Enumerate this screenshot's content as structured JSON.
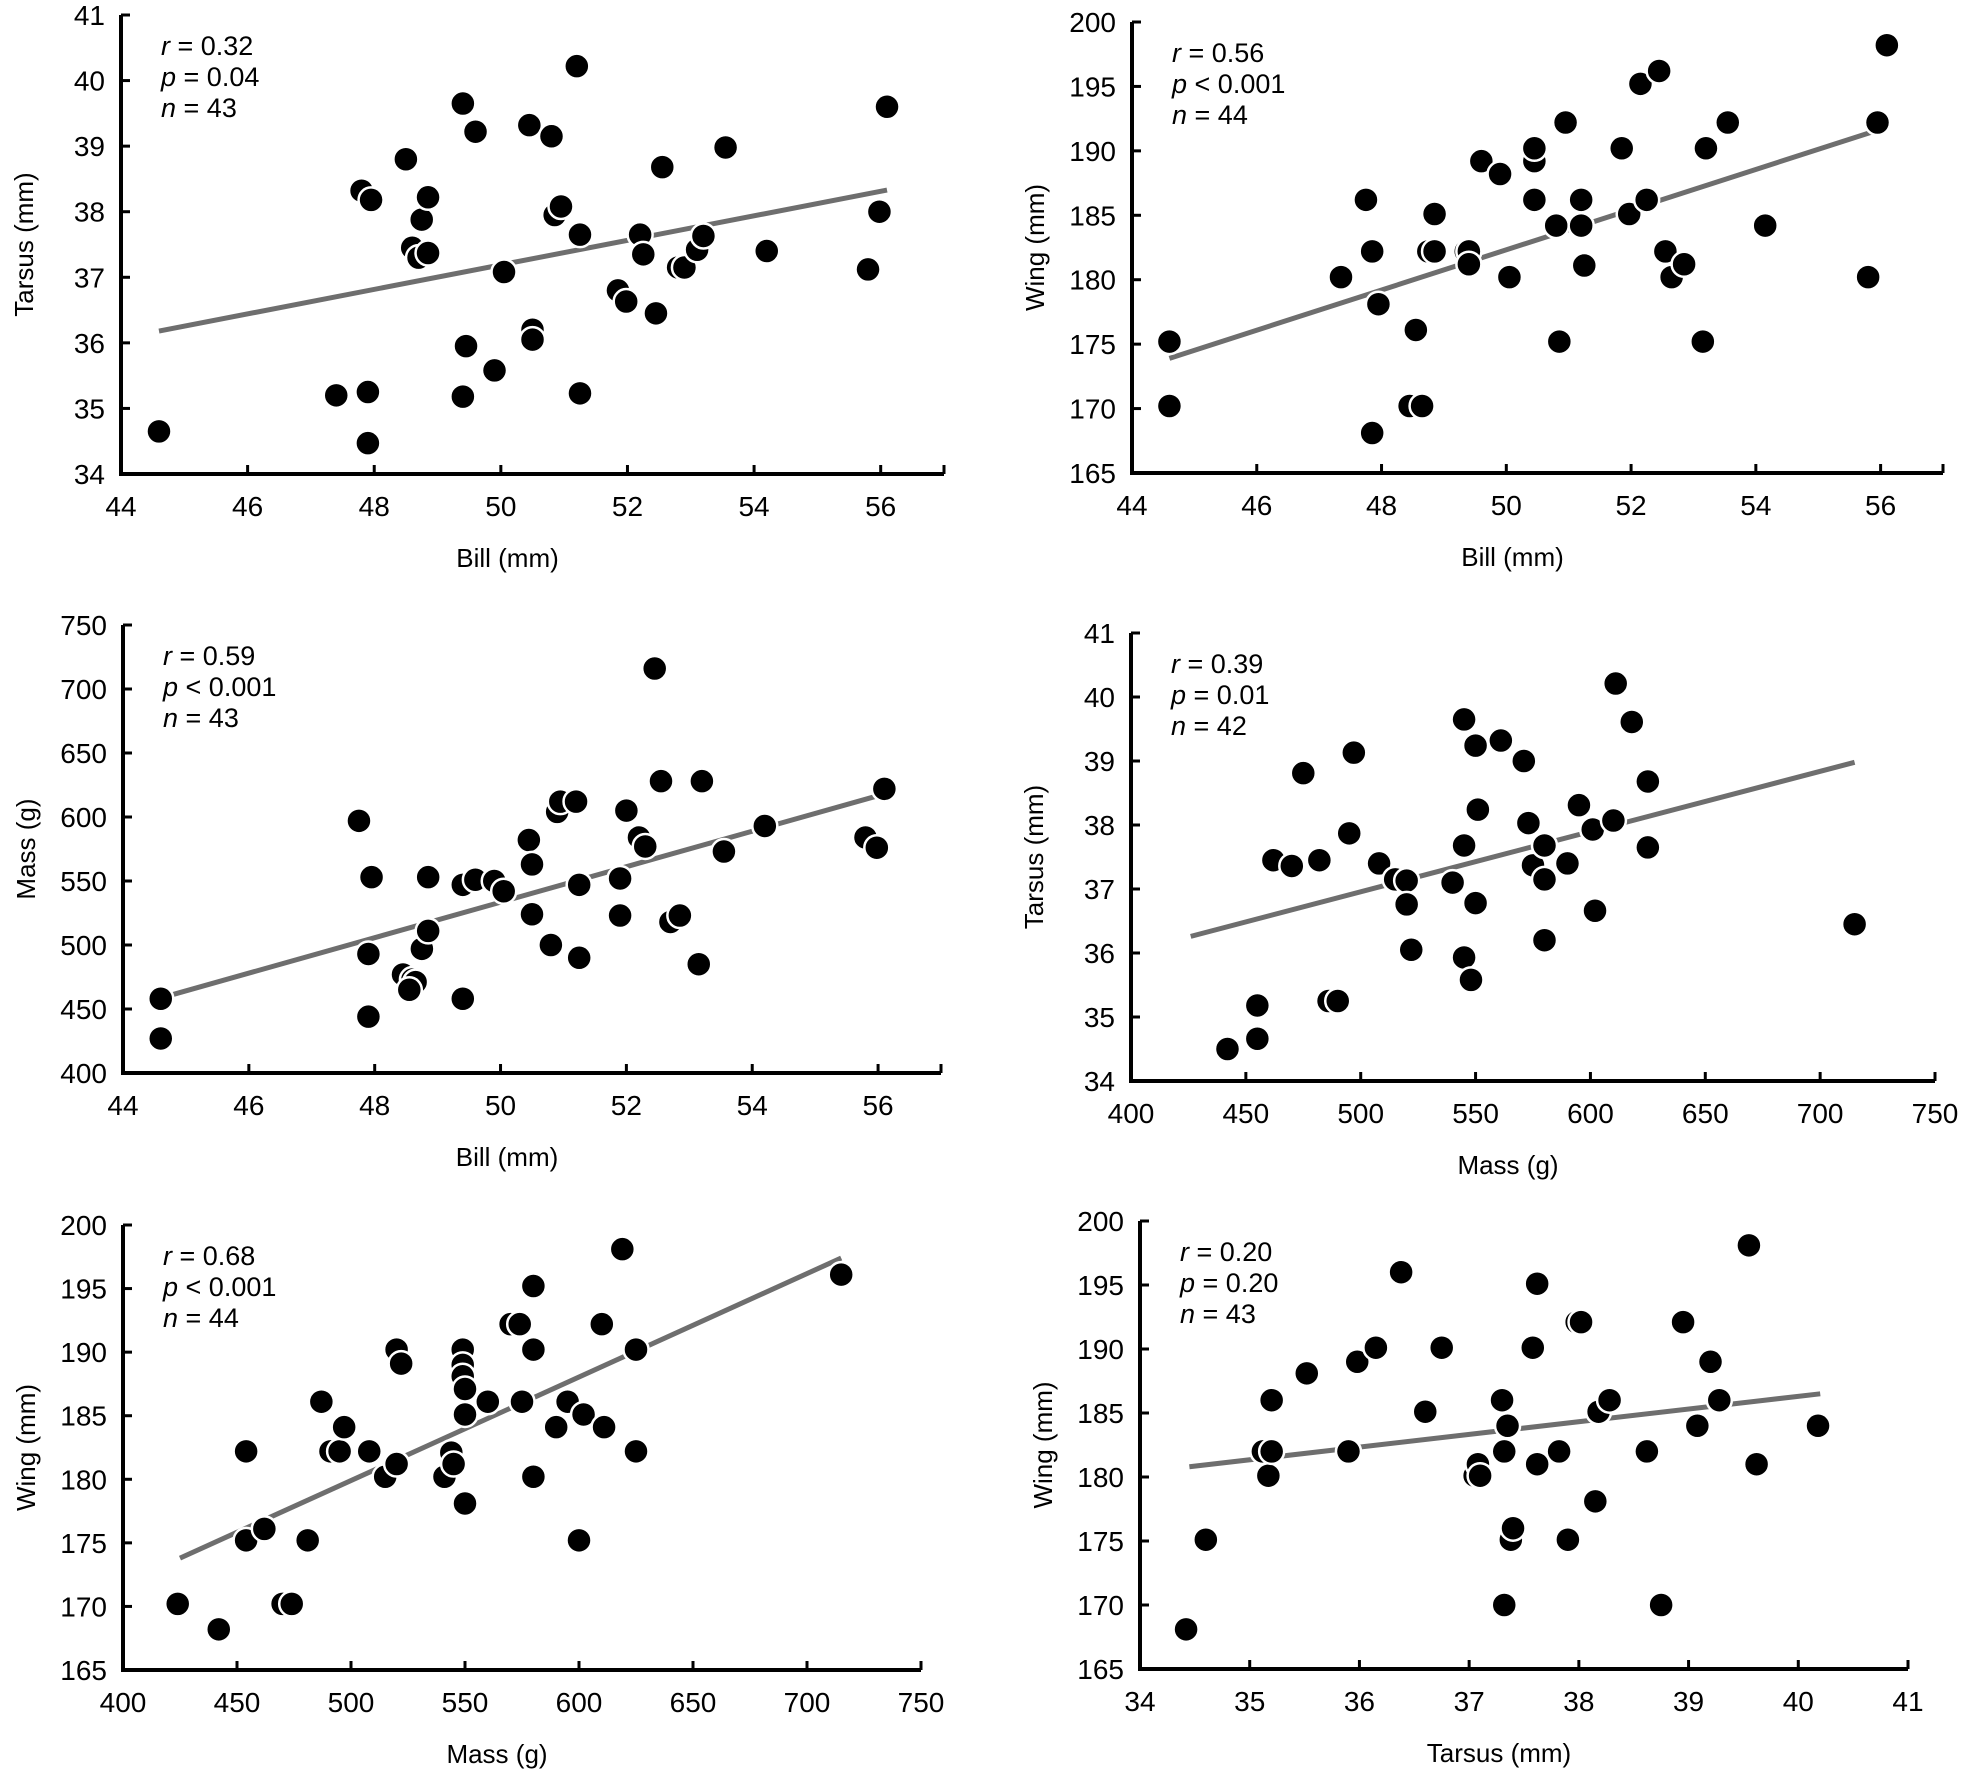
{
  "chart_data": [
    {
      "type": "scatter",
      "id": "bill-tarsus",
      "xlabel": "Bill (mm)",
      "ylabel": "Tarsus (mm)",
      "xlim": [
        44,
        57
      ],
      "ylim": [
        34,
        41
      ],
      "xticks": [
        44,
        46,
        48,
        50,
        52,
        54,
        56
      ],
      "yticks": [
        34,
        35,
        36,
        37,
        38,
        39,
        40,
        41
      ],
      "stats": {
        "r_label": "r",
        "r": "= 0.32",
        "p_label": "p",
        "p": "= 0.04",
        "n_label": "n",
        "n": "= 43"
      },
      "trend": {
        "x": [
          44.6,
          56.1
        ],
        "y": [
          36.18,
          38.33
        ]
      },
      "points": [
        [
          44.6,
          34.65
        ],
        [
          47.4,
          35.2
        ],
        [
          47.8,
          38.32
        ],
        [
          47.9,
          35.25
        ],
        [
          47.9,
          34.47
        ],
        [
          47.95,
          38.18
        ],
        [
          48.5,
          38.8
        ],
        [
          48.6,
          37.45
        ],
        [
          48.7,
          37.3
        ],
        [
          48.75,
          37.88
        ],
        [
          48.85,
          38.22
        ],
        [
          48.85,
          37.37
        ],
        [
          49.4,
          39.65
        ],
        [
          49.45,
          35.95
        ],
        [
          49.4,
          35.18
        ],
        [
          49.6,
          39.22
        ],
        [
          49.9,
          35.58
        ],
        [
          50.05,
          37.08
        ],
        [
          50.45,
          39.32
        ],
        [
          50.5,
          36.2
        ],
        [
          50.5,
          36.05
        ],
        [
          50.8,
          39.15
        ],
        [
          50.85,
          37.95
        ],
        [
          50.95,
          38.08
        ],
        [
          51.2,
          40.22
        ],
        [
          51.25,
          37.65
        ],
        [
          51.25,
          35.23
        ],
        [
          51.85,
          36.8
        ],
        [
          51.98,
          36.63
        ],
        [
          52.2,
          37.65
        ],
        [
          52.25,
          37.35
        ],
        [
          52.45,
          36.45
        ],
        [
          52.55,
          38.68
        ],
        [
          52.8,
          37.15
        ],
        [
          52.9,
          37.15
        ],
        [
          53.1,
          37.42
        ],
        [
          53.2,
          37.63
        ],
        [
          53.55,
          38.98
        ],
        [
          54.2,
          37.4
        ],
        [
          55.8,
          37.12
        ],
        [
          55.98,
          38.0
        ],
        [
          56.1,
          39.6
        ]
      ]
    },
    {
      "type": "scatter",
      "id": "bill-wing",
      "xlabel": "Bill (mm)",
      "ylabel": "Wing (mm)",
      "xlim": [
        44,
        57
      ],
      "ylim": [
        165,
        200
      ],
      "xticks": [
        44,
        46,
        48,
        50,
        52,
        54,
        56
      ],
      "yticks": [
        165,
        170,
        175,
        180,
        185,
        190,
        195,
        200
      ],
      "stats": {
        "r_label": "r",
        "r": "= 0.56",
        "p_label": "p",
        "p": "< 0.001",
        "n_label": "n",
        "n": "= 44"
      },
      "trend": {
        "x": [
          44.6,
          55.95
        ],
        "y": [
          173.9,
          191.6
        ]
      },
      "points": [
        [
          44.6,
          175.2
        ],
        [
          44.6,
          170.2
        ],
        [
          47.35,
          180.2
        ],
        [
          47.75,
          186.2
        ],
        [
          47.85,
          182.2
        ],
        [
          47.85,
          168.1
        ],
        [
          47.95,
          178.1
        ],
        [
          48.45,
          170.2
        ],
        [
          48.55,
          176.1
        ],
        [
          48.65,
          170.2
        ],
        [
          48.75,
          182.2
        ],
        [
          48.85,
          185.1
        ],
        [
          48.85,
          182.2
        ],
        [
          49.35,
          182.2
        ],
        [
          49.4,
          182.2
        ],
        [
          49.4,
          181.2
        ],
        [
          49.6,
          189.2
        ],
        [
          49.9,
          188.2
        ],
        [
          50.05,
          180.2
        ],
        [
          50.45,
          189.2
        ],
        [
          50.45,
          190.2
        ],
        [
          50.45,
          186.2
        ],
        [
          50.8,
          184.2
        ],
        [
          50.85,
          175.2
        ],
        [
          50.95,
          192.2
        ],
        [
          51.2,
          186.2
        ],
        [
          51.2,
          184.2
        ],
        [
          51.25,
          181.1
        ],
        [
          51.85,
          190.2
        ],
        [
          51.97,
          185.1
        ],
        [
          52.15,
          195.2
        ],
        [
          52.25,
          186.2
        ],
        [
          52.45,
          196.2
        ],
        [
          52.55,
          182.2
        ],
        [
          52.65,
          180.2
        ],
        [
          52.85,
          181.2
        ],
        [
          53.15,
          175.2
        ],
        [
          53.2,
          190.2
        ],
        [
          53.55,
          192.2
        ],
        [
          54.15,
          184.2
        ],
        [
          55.8,
          180.2
        ],
        [
          55.95,
          192.2
        ],
        [
          56.1,
          198.2
        ]
      ]
    },
    {
      "type": "scatter",
      "id": "bill-mass",
      "xlabel": "Bill (mm)",
      "ylabel": "Mass (g)",
      "xlim": [
        44,
        57
      ],
      "ylim": [
        400,
        750
      ],
      "xticks": [
        44,
        46,
        48,
        50,
        52,
        54,
        56
      ],
      "yticks": [
        400,
        450,
        500,
        550,
        600,
        650,
        700,
        750
      ],
      "stats": {
        "r_label": "r",
        "r": "= 0.59",
        "p_label": "p",
        "p": "< 0.001",
        "n_label": "n",
        "n": "= 43"
      },
      "trend": {
        "x": [
          44.7,
          56.1
        ],
        "y": [
          460,
          618
        ]
      },
      "points": [
        [
          44.6,
          458
        ],
        [
          44.6,
          427
        ],
        [
          47.75,
          597
        ],
        [
          47.9,
          493
        ],
        [
          47.9,
          444
        ],
        [
          47.95,
          553
        ],
        [
          48.45,
          477
        ],
        [
          48.6,
          473
        ],
        [
          48.65,
          471
        ],
        [
          48.55,
          465
        ],
        [
          48.75,
          497
        ],
        [
          48.85,
          511
        ],
        [
          48.85,
          553
        ],
        [
          49.4,
          547
        ],
        [
          49.4,
          458
        ],
        [
          49.6,
          551
        ],
        [
          49.9,
          550
        ],
        [
          50.05,
          542
        ],
        [
          50.45,
          582
        ],
        [
          50.5,
          563
        ],
        [
          50.5,
          524
        ],
        [
          50.8,
          500
        ],
        [
          50.9,
          604
        ],
        [
          50.95,
          612
        ],
        [
          51.2,
          612
        ],
        [
          51.25,
          547
        ],
        [
          51.25,
          490
        ],
        [
          51.9,
          552
        ],
        [
          51.9,
          523
        ],
        [
          52.0,
          605
        ],
        [
          52.2,
          584
        ],
        [
          52.3,
          577
        ],
        [
          52.45,
          716
        ],
        [
          52.55,
          628
        ],
        [
          52.7,
          518
        ],
        [
          52.85,
          523
        ],
        [
          53.15,
          485
        ],
        [
          53.2,
          628
        ],
        [
          53.55,
          573
        ],
        [
          54.2,
          593
        ],
        [
          55.8,
          584
        ],
        [
          55.98,
          576
        ],
        [
          56.1,
          622
        ]
      ]
    },
    {
      "type": "scatter",
      "id": "mass-tarsus",
      "xlabel": "Mass (g)",
      "ylabel": "Tarsus (mm)",
      "xlim": [
        400,
        750
      ],
      "ylim": [
        34,
        41
      ],
      "xticks": [
        400,
        450,
        500,
        550,
        600,
        650,
        700,
        750
      ],
      "yticks": [
        34,
        35,
        36,
        37,
        38,
        39,
        40,
        41
      ],
      "stats": {
        "r_label": "r",
        "r": "= 0.39",
        "p_label": "p",
        "p": "= 0.01",
        "n_label": "n",
        "n": "= 42"
      },
      "trend": {
        "x": [
          426,
          715
        ],
        "y": [
          36.26,
          38.98
        ]
      },
      "points": [
        [
          442,
          34.5
        ],
        [
          455,
          35.18
        ],
        [
          455,
          34.66
        ],
        [
          462,
          37.45
        ],
        [
          470,
          37.36
        ],
        [
          475,
          38.81
        ],
        [
          482,
          37.45
        ],
        [
          486,
          35.25
        ],
        [
          490,
          35.25
        ],
        [
          495,
          37.87
        ],
        [
          497,
          39.13
        ],
        [
          508,
          37.4
        ],
        [
          515,
          37.15
        ],
        [
          520,
          37.13
        ],
        [
          520,
          36.76
        ],
        [
          522,
          36.05
        ],
        [
          540,
          37.1
        ],
        [
          545,
          37.68
        ],
        [
          545,
          35.93
        ],
        [
          545,
          39.65
        ],
        [
          548,
          35.58
        ],
        [
          550,
          39.24
        ],
        [
          550,
          36.78
        ],
        [
          551,
          38.24
        ],
        [
          561,
          39.32
        ],
        [
          571,
          39.0
        ],
        [
          573,
          38.03
        ],
        [
          575,
          37.37
        ],
        [
          580,
          37.68
        ],
        [
          580,
          36.2
        ],
        [
          580,
          37.15
        ],
        [
          590,
          37.4
        ],
        [
          595,
          38.31
        ],
        [
          601,
          37.93
        ],
        [
          602,
          36.66
        ],
        [
          610,
          38.07
        ],
        [
          611,
          40.21
        ],
        [
          618,
          39.61
        ],
        [
          625,
          38.68
        ],
        [
          625,
          37.65
        ],
        [
          715,
          36.45
        ]
      ]
    },
    {
      "type": "scatter",
      "id": "mass-wing",
      "xlabel": "Mass (g)",
      "ylabel": "Wing (mm)",
      "xlim": [
        400,
        750
      ],
      "ylim": [
        165,
        200
      ],
      "xticks": [
        400,
        450,
        500,
        550,
        600,
        650,
        700,
        750
      ],
      "yticks": [
        165,
        170,
        175,
        180,
        185,
        190,
        195,
        200
      ],
      "stats": {
        "r_label": "r",
        "r": "= 0.68",
        "p_label": "p",
        "p": "< 0.001",
        "n_label": "n",
        "n": "= 44"
      },
      "trend": {
        "x": [
          425,
          715
        ],
        "y": [
          173.8,
          197.4
        ]
      },
      "points": [
        [
          424,
          170.2
        ],
        [
          442,
          168.2
        ],
        [
          454,
          182.2
        ],
        [
          454,
          175.2
        ],
        [
          462,
          176.1
        ],
        [
          470,
          170.2
        ],
        [
          474,
          170.2
        ],
        [
          481,
          175.2
        ],
        [
          487,
          186.1
        ],
        [
          491,
          182.2
        ],
        [
          495,
          182.2
        ],
        [
          497,
          184.1
        ],
        [
          508,
          182.2
        ],
        [
          515,
          180.2
        ],
        [
          520,
          181.2
        ],
        [
          520,
          190.2
        ],
        [
          522,
          189.1
        ],
        [
          541,
          180.2
        ],
        [
          544,
          182.1
        ],
        [
          545,
          181.2
        ],
        [
          549,
          190.2
        ],
        [
          549,
          189.0
        ],
        [
          549,
          188.1
        ],
        [
          550,
          187.1
        ],
        [
          550,
          185.1
        ],
        [
          550,
          178.1
        ],
        [
          560,
          186.1
        ],
        [
          570,
          192.2
        ],
        [
          574,
          192.2
        ],
        [
          575,
          186.1
        ],
        [
          580,
          195.2
        ],
        [
          580,
          190.2
        ],
        [
          580,
          180.2
        ],
        [
          590,
          184.1
        ],
        [
          595,
          186.1
        ],
        [
          600,
          175.2
        ],
        [
          602,
          185.1
        ],
        [
          610,
          192.2
        ],
        [
          611,
          184.1
        ],
        [
          619,
          198.1
        ],
        [
          625,
          190.2
        ],
        [
          625,
          182.2
        ],
        [
          715,
          196.1
        ]
      ]
    },
    {
      "type": "scatter",
      "id": "tarsus-wing",
      "xlabel": "Tarsus (mm)",
      "ylabel": "Wing (mm)",
      "xlim": [
        34,
        41
      ],
      "ylim": [
        165,
        200
      ],
      "xticks": [
        34,
        35,
        36,
        37,
        38,
        39,
        40,
        41
      ],
      "yticks": [
        165,
        170,
        175,
        180,
        185,
        190,
        195,
        200
      ],
      "stats": {
        "r_label": "r",
        "r": "= 0.20",
        "p_label": "p",
        "p": "= 0.20",
        "n_label": "n",
        "n": "= 43"
      },
      "trend": {
        "x": [
          34.45,
          40.2
        ],
        "y": [
          180.8,
          186.5
        ]
      },
      "points": [
        [
          34.42,
          168.1
        ],
        [
          34.6,
          175.1
        ],
        [
          35.12,
          182.0
        ],
        [
          35.17,
          180.1
        ],
        [
          35.2,
          182.0
        ],
        [
          35.2,
          186.0
        ],
        [
          35.52,
          188.1
        ],
        [
          35.9,
          182.0
        ],
        [
          35.98,
          189.0
        ],
        [
          36.15,
          190.1
        ],
        [
          36.38,
          196.0
        ],
        [
          36.6,
          185.1
        ],
        [
          36.75,
          190.1
        ],
        [
          37.05,
          180.1
        ],
        [
          37.08,
          181.0
        ],
        [
          37.1,
          180.1
        ],
        [
          37.3,
          186.0
        ],
        [
          37.32,
          182.0
        ],
        [
          37.32,
          170.0
        ],
        [
          37.35,
          184.0
        ],
        [
          37.38,
          175.1
        ],
        [
          37.4,
          176.0
        ],
        [
          37.58,
          190.1
        ],
        [
          37.62,
          195.1
        ],
        [
          37.62,
          181.0
        ],
        [
          37.82,
          182.0
        ],
        [
          37.9,
          175.1
        ],
        [
          37.98,
          192.1
        ],
        [
          38.02,
          192.1
        ],
        [
          38.15,
          178.1
        ],
        [
          38.18,
          185.1
        ],
        [
          38.28,
          186.0
        ],
        [
          38.62,
          182.0
        ],
        [
          38.75,
          170.0
        ],
        [
          38.95,
          192.1
        ],
        [
          39.08,
          184.0
        ],
        [
          39.2,
          189.0
        ],
        [
          39.28,
          186.0
        ],
        [
          39.55,
          198.1
        ],
        [
          39.62,
          181.0
        ],
        [
          40.18,
          184.0
        ]
      ]
    }
  ]
}
